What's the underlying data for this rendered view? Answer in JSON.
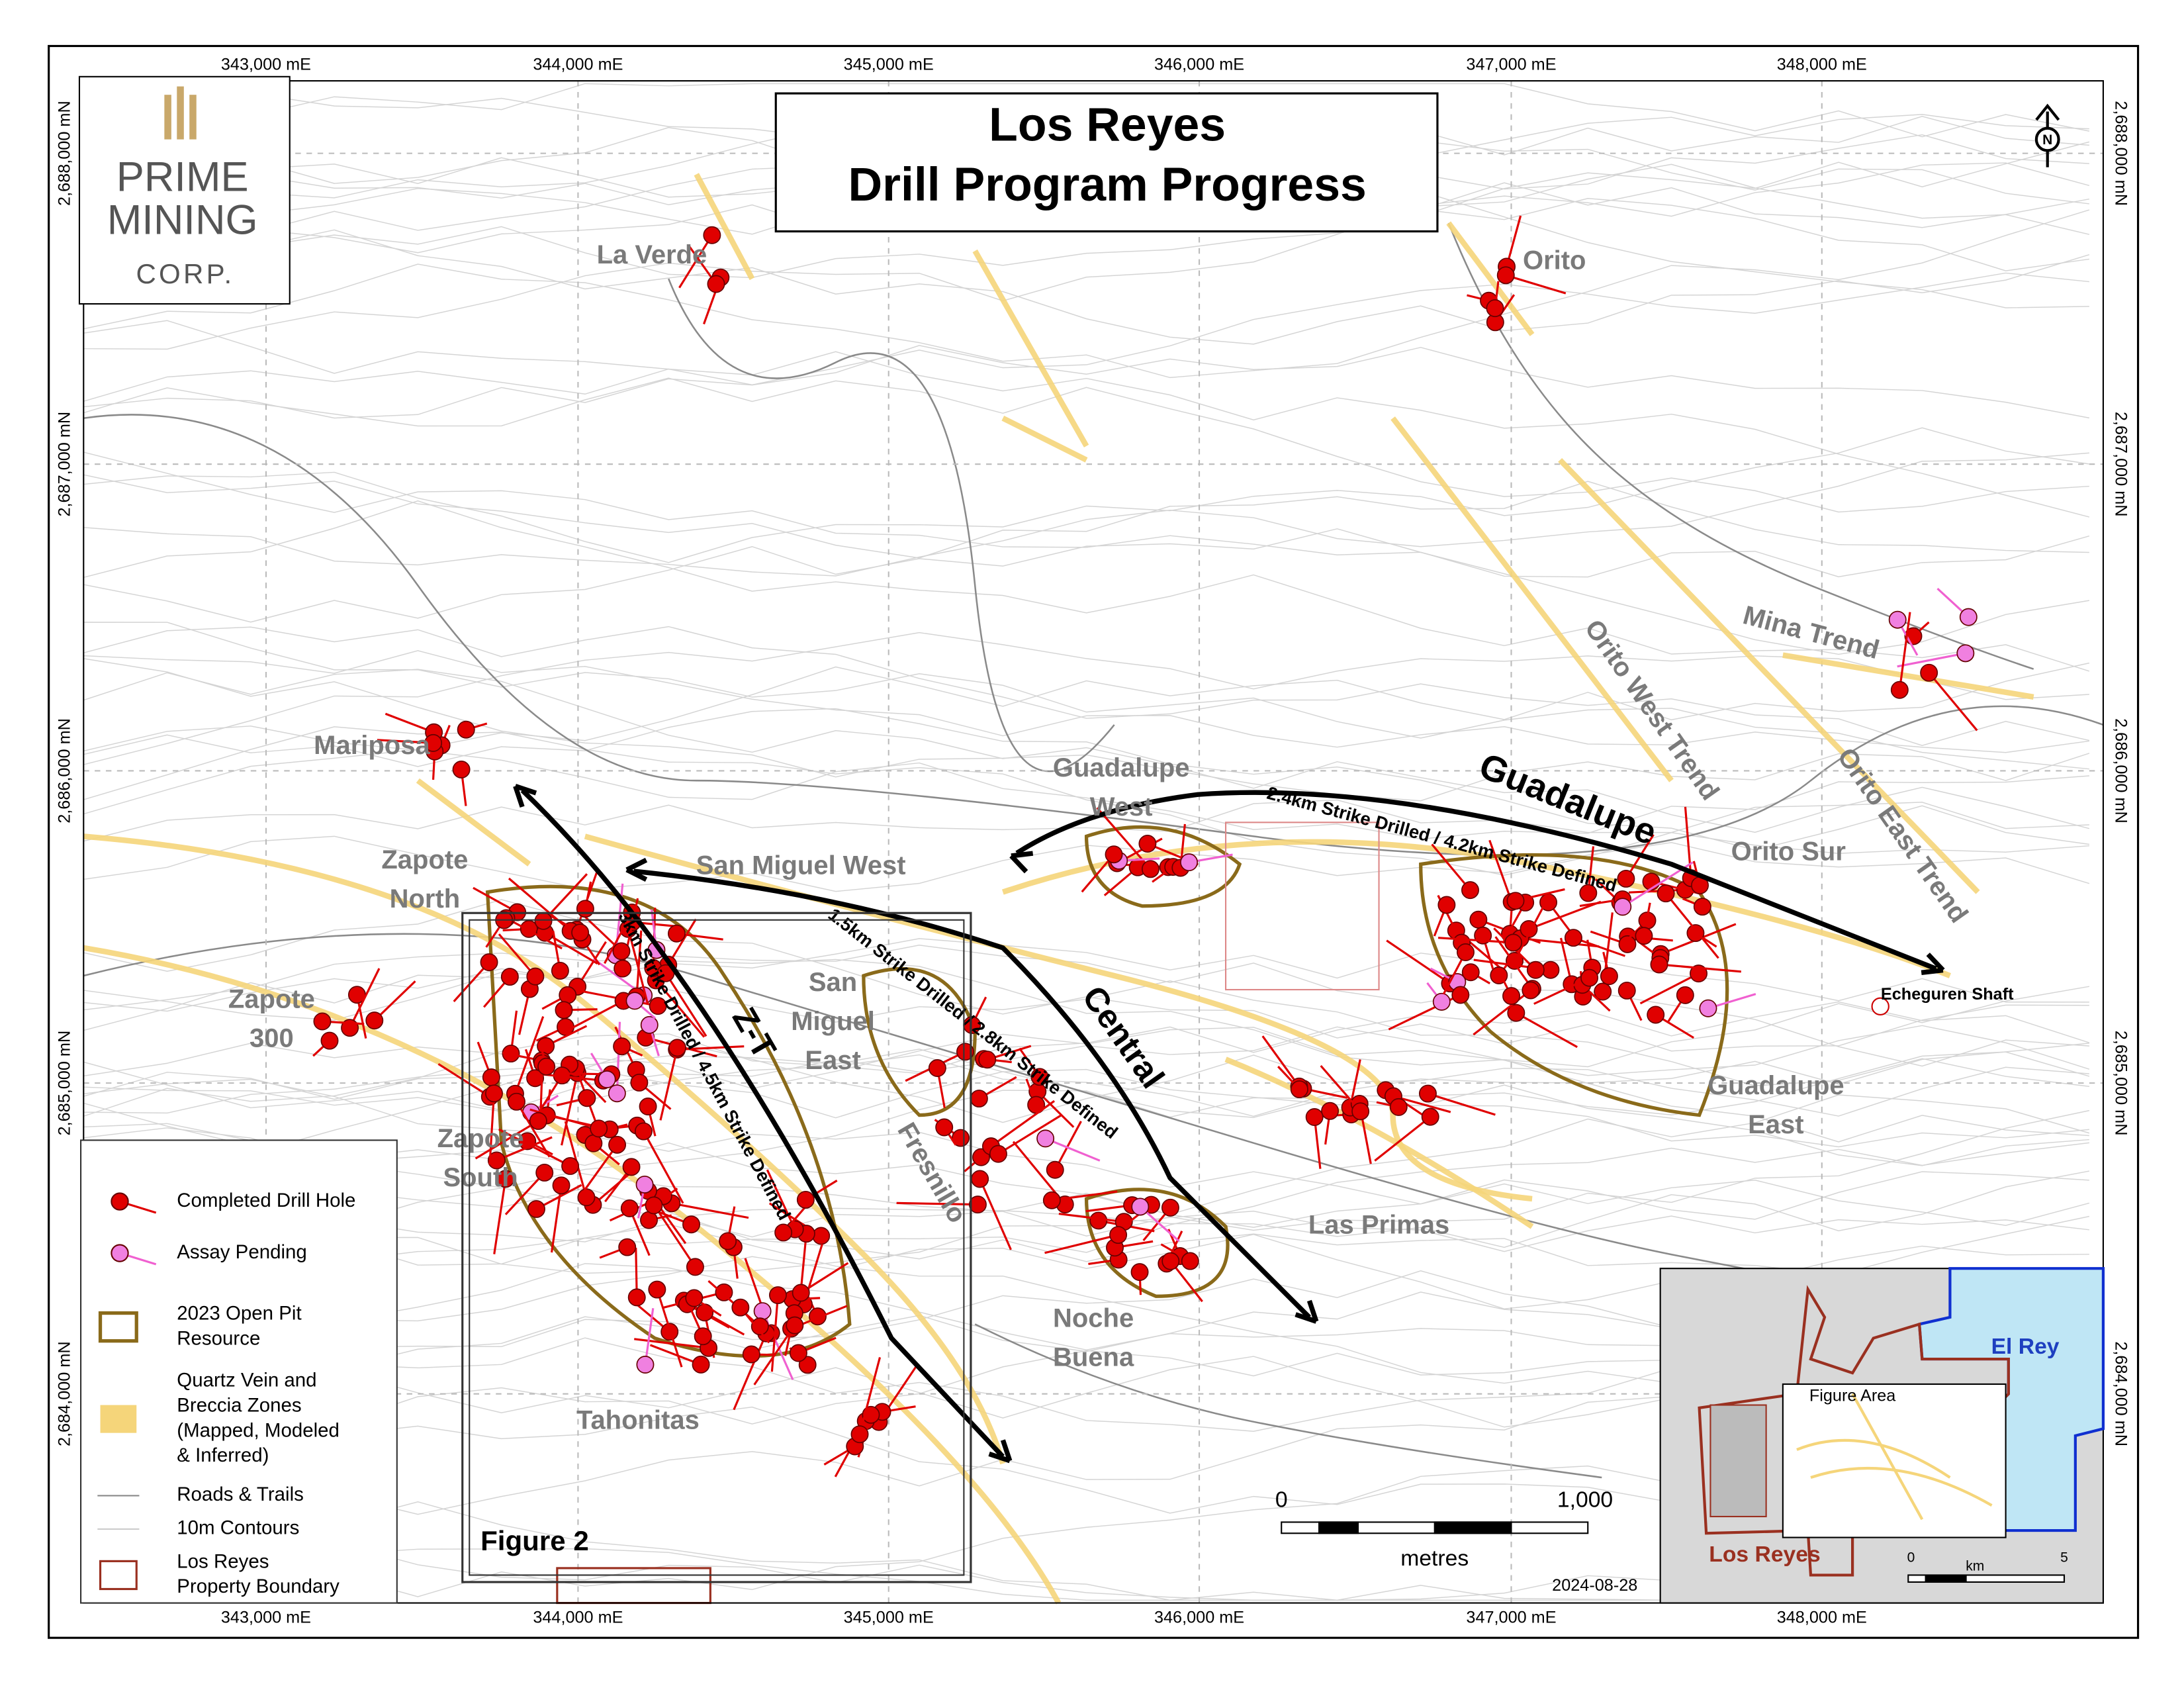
{
  "title": [
    "Los Reyes",
    "Drill Program Progress"
  ],
  "logo": {
    "name": [
      "PRIME",
      "MINING"
    ],
    "suffix": "CORP."
  },
  "grid": {
    "eastings": [
      "343,000 mE",
      "344,000 mE",
      "345,000 mE",
      "346,000 mE",
      "347,000 mE",
      "348,000 mE"
    ],
    "northings": [
      "2,688,000 mN",
      "2,687,000 mN",
      "2,686,000 mN",
      "2,685,000 mN",
      "2,684,000 mN"
    ]
  },
  "labels": [
    {
      "text": [
        "La Verde"
      ]
    },
    {
      "text": [
        "Orito"
      ]
    },
    {
      "text": [
        "Mina Trend"
      ]
    },
    {
      "text": [
        "Orito West Trend"
      ]
    },
    {
      "text": [
        "Orito East Trend"
      ]
    },
    {
      "text": [
        "Mariposa"
      ]
    },
    {
      "text": [
        "Guadalupe",
        "West"
      ]
    },
    {
      "text": [
        "Zapote",
        "North"
      ]
    },
    {
      "text": [
        "San Miguel West"
      ]
    },
    {
      "text": [
        "Orito Sur"
      ]
    },
    {
      "text": [
        "Zapote",
        "300"
      ]
    },
    {
      "text": [
        "San",
        "Miguel",
        "East"
      ]
    },
    {
      "text": [
        "Guadalupe",
        "East"
      ]
    },
    {
      "text": [
        "Zapote",
        "South"
      ]
    },
    {
      "text": [
        "Fresnillo"
      ]
    },
    {
      "text": [
        "Las Primas"
      ]
    },
    {
      "text": [
        "Noche",
        "Buena"
      ]
    },
    {
      "text": [
        "Tahonitas"
      ]
    }
  ],
  "trends": [
    {
      "name": "Guadalupe",
      "strike": "2.4km Strike Drilled / 4.2km Strike Defined"
    },
    {
      "name": "Central",
      "strike": "1.5km Strike Drilled / 2.8km Strike Defined"
    },
    {
      "name": "Z-T",
      "strike": "3km Strike Drilled / 4.5km Strike Defined"
    }
  ],
  "echeguren": "Echeguren Shaft",
  "figure_label": "Figure 2",
  "legend": [
    {
      "text": [
        "Completed Drill Hole"
      ]
    },
    {
      "text": [
        "Assay Pending"
      ]
    },
    {
      "text": [
        "2023 Open Pit",
        "Resource"
      ]
    },
    {
      "text": [
        "Quartz Vein and",
        "Breccia Zones",
        "(Mapped, Modeled",
        "& Inferred)"
      ]
    },
    {
      "text": [
        "Roads & Trails"
      ]
    },
    {
      "text": [
        "10m Contours"
      ]
    },
    {
      "text": [
        "Los Reyes",
        "Property Boundary"
      ]
    }
  ],
  "scale": {
    "start": "0",
    "end": "1,000",
    "unit": "metres"
  },
  "inset": {
    "el_rey": "El Rey",
    "figure_area": "Figure Area",
    "los_reyes": "Los Reyes",
    "start": "0",
    "unit": "km",
    "end": "5"
  },
  "date": "2024-08-28"
}
